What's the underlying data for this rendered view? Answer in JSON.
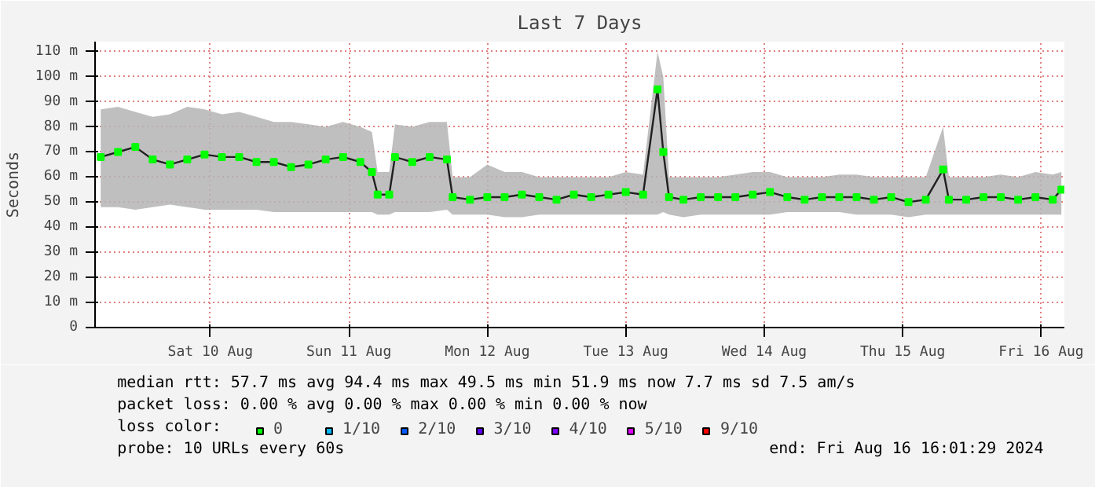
{
  "chart_data": {
    "type": "line",
    "title": "Last 7 Days",
    "ylabel": "Seconds",
    "legend_title": "loss color:",
    "legend": "bottom",
    "grid": true,
    "marker": "square",
    "line_style": "solid",
    "xlim": [
      "2024-08-09T16:01",
      "2024-08-16T16:01"
    ],
    "xticks": [
      {
        "value": "2024-08-10T12:00",
        "label": "Sat 10 Aug"
      },
      {
        "value": "2024-08-11T12:00",
        "label": "Sun 11 Aug"
      },
      {
        "value": "2024-08-12T12:00",
        "label": "Mon 12 Aug"
      },
      {
        "value": "2024-08-13T12:00",
        "label": "Tue 13 Aug"
      },
      {
        "value": "2024-08-14T12:00",
        "label": "Wed 14 Aug"
      },
      {
        "value": "2024-08-15T12:00",
        "label": "Thu 15 Aug"
      },
      {
        "value": "2024-08-16T12:00",
        "label": "Fri 16 Aug"
      }
    ],
    "ylim": [
      0,
      114
    ],
    "yticks": [
      0,
      {
        "value": 10,
        "label": "10 m"
      },
      {
        "value": 20,
        "label": "20 m"
      },
      {
        "value": 30,
        "label": "30 m"
      },
      {
        "value": 40,
        "label": "40 m"
      },
      {
        "value": 50,
        "label": "50 m"
      },
      {
        "value": 60,
        "label": "60 m"
      },
      {
        "value": 70,
        "label": "70 m"
      },
      {
        "value": 80,
        "label": "80 m"
      },
      {
        "value": 90,
        "label": "90 m"
      },
      {
        "value": 100,
        "label": "100 m"
      },
      {
        "value": 110,
        "label": "110 m"
      }
    ],
    "x": [
      "2024-08-09T17:00",
      "2024-08-09T20:00",
      "2024-08-09T23:00",
      "2024-08-10T02:00",
      "2024-08-10T05:00",
      "2024-08-10T08:00",
      "2024-08-10T11:00",
      "2024-08-10T14:00",
      "2024-08-10T17:00",
      "2024-08-10T20:00",
      "2024-08-10T23:00",
      "2024-08-11T02:00",
      "2024-08-11T05:00",
      "2024-08-11T08:00",
      "2024-08-11T11:00",
      "2024-08-11T14:00",
      "2024-08-11T16:00",
      "2024-08-11T17:00",
      "2024-08-11T19:00",
      "2024-08-11T20:00",
      "2024-08-11T23:00",
      "2024-08-12T02:00",
      "2024-08-12T05:00",
      "2024-08-12T06:00",
      "2024-08-12T09:00",
      "2024-08-12T12:00",
      "2024-08-12T15:00",
      "2024-08-12T18:00",
      "2024-08-12T21:00",
      "2024-08-13T00:00",
      "2024-08-13T03:00",
      "2024-08-13T06:00",
      "2024-08-13T09:00",
      "2024-08-13T12:00",
      "2024-08-13T15:00",
      "2024-08-13T17:30",
      "2024-08-13T18:30",
      "2024-08-13T19:30",
      "2024-08-13T22:00",
      "2024-08-14T01:00",
      "2024-08-14T04:00",
      "2024-08-14T07:00",
      "2024-08-14T10:00",
      "2024-08-14T13:00",
      "2024-08-14T16:00",
      "2024-08-14T19:00",
      "2024-08-14T22:00",
      "2024-08-15T01:00",
      "2024-08-15T04:00",
      "2024-08-15T07:00",
      "2024-08-15T10:00",
      "2024-08-15T13:00",
      "2024-08-15T16:00",
      "2024-08-15T19:00",
      "2024-08-15T20:00",
      "2024-08-15T23:00",
      "2024-08-16T02:00",
      "2024-08-16T05:00",
      "2024-08-16T08:00",
      "2024-08-16T11:00",
      "2024-08-16T14:00",
      "2024-08-16T15:30"
    ],
    "series": [
      {
        "name": "0",
        "color": "#00ff00",
        "values": [
          68,
          70,
          72,
          67,
          65,
          67,
          69,
          68,
          68,
          66,
          66,
          64,
          65,
          67,
          68,
          66,
          62,
          53,
          53,
          68,
          66,
          68,
          67,
          52,
          51,
          52,
          52,
          53,
          52,
          51,
          53,
          52,
          53,
          54,
          53,
          95,
          70,
          52,
          51,
          52,
          52,
          52,
          53,
          54,
          52,
          51,
          52,
          52,
          52,
          51,
          52,
          50,
          51,
          63,
          51,
          51,
          52,
          52,
          51,
          52,
          51,
          55
        ],
        "lower": [
          48,
          48,
          47,
          48,
          49,
          48,
          47,
          47,
          47,
          47,
          46,
          46,
          46,
          46,
          46,
          46,
          46,
          45,
          45,
          46,
          46,
          46,
          47,
          45,
          45,
          45,
          44,
          44,
          45,
          45,
          45,
          45,
          45,
          45,
          45,
          45,
          46,
          45,
          44,
          45,
          45,
          45,
          45,
          45,
          46,
          46,
          46,
          46,
          45,
          45,
          45,
          44,
          45,
          45,
          45,
          45,
          45,
          45,
          45,
          45,
          45,
          45
        ],
        "upper": [
          87,
          88,
          86,
          84,
          85,
          88,
          87,
          85,
          86,
          84,
          82,
          82,
          81,
          80,
          82,
          80,
          78,
          62,
          62,
          81,
          80,
          82,
          82,
          60,
          60,
          65,
          62,
          62,
          60,
          60,
          60,
          60,
          60,
          62,
          61,
          110,
          100,
          60,
          60,
          60,
          60,
          61,
          62,
          62,
          60,
          60,
          60,
          61,
          61,
          60,
          60,
          60,
          60,
          80,
          60,
          60,
          60,
          61,
          60,
          62,
          61,
          62
        ]
      },
      {
        "name": "1/10",
        "color": "#00b8ff",
        "values": [
          null,
          null,
          null,
          null,
          null,
          null,
          null,
          null,
          null,
          null,
          null,
          null,
          null,
          null,
          null,
          null,
          null,
          null,
          null,
          null,
          null,
          null,
          null,
          null,
          null,
          null,
          null,
          null,
          null,
          null,
          null,
          null,
          null,
          null,
          null,
          null,
          null,
          null,
          null,
          null,
          null,
          null,
          null,
          null,
          null,
          null,
          null,
          null,
          null,
          null,
          null,
          null,
          null,
          null,
          null,
          null,
          null,
          null,
          null,
          null,
          null,
          null
        ]
      },
      {
        "name": "2/10",
        "color": "#0059ff",
        "values": [
          null,
          null,
          null,
          null,
          null,
          null,
          null,
          null,
          null,
          null,
          null,
          null,
          null,
          null,
          null,
          null,
          null,
          null,
          null,
          null,
          null,
          null,
          null,
          null,
          null,
          null,
          null,
          null,
          null,
          null,
          null,
          null,
          null,
          null,
          null,
          null,
          null,
          null,
          null,
          null,
          null,
          null,
          null,
          null,
          null,
          null,
          null,
          null,
          null,
          null,
          null,
          null,
          null,
          null,
          null,
          null,
          null,
          null,
          null,
          null,
          null,
          null
        ]
      },
      {
        "name": "3/10",
        "color": "#5e00ff",
        "values": [
          null,
          null,
          null,
          null,
          null,
          null,
          null,
          null,
          null,
          null,
          null,
          null,
          null,
          null,
          null,
          null,
          null,
          null,
          null,
          null,
          null,
          null,
          null,
          null,
          null,
          null,
          null,
          null,
          null,
          null,
          null,
          null,
          null,
          null,
          null,
          null,
          null,
          null,
          null,
          null,
          null,
          null,
          null,
          null,
          null,
          null,
          null,
          null,
          null,
          null,
          null,
          null,
          null,
          null,
          null,
          null,
          null,
          null,
          null,
          null,
          null,
          null
        ]
      },
      {
        "name": "4/10",
        "color": "#7e00ff",
        "values": [
          null,
          null,
          null,
          null,
          null,
          null,
          null,
          null,
          null,
          null,
          null,
          null,
          null,
          null,
          null,
          null,
          null,
          null,
          null,
          null,
          null,
          null,
          null,
          null,
          null,
          null,
          null,
          null,
          null,
          null,
          null,
          null,
          null,
          null,
          null,
          null,
          null,
          null,
          null,
          null,
          null,
          null,
          null,
          null,
          null,
          null,
          null,
          null,
          null,
          null,
          null,
          null,
          null,
          null,
          null,
          null,
          null,
          null,
          null,
          null,
          null,
          null
        ]
      },
      {
        "name": "5/10",
        "color": "#dd00ff",
        "values": [
          null,
          null,
          null,
          null,
          null,
          null,
          null,
          null,
          null,
          null,
          null,
          null,
          null,
          null,
          null,
          null,
          null,
          null,
          null,
          null,
          null,
          null,
          null,
          null,
          null,
          null,
          null,
          null,
          null,
          null,
          null,
          null,
          null,
          null,
          null,
          null,
          null,
          null,
          null,
          null,
          null,
          null,
          null,
          null,
          null,
          null,
          null,
          null,
          null,
          null,
          null,
          null,
          null,
          null,
          null,
          null,
          null,
          null,
          null,
          null,
          null,
          null
        ]
      },
      {
        "name": "9/10",
        "color": "#ff0000",
        "values": [
          null,
          null,
          null,
          null,
          null,
          null,
          null,
          null,
          null,
          null,
          null,
          null,
          null,
          null,
          null,
          null,
          null,
          null,
          null,
          null,
          null,
          null,
          null,
          null,
          null,
          null,
          null,
          null,
          null,
          null,
          null,
          null,
          null,
          null,
          null,
          null,
          null,
          null,
          null,
          null,
          null,
          null,
          null,
          null,
          null,
          null,
          null,
          null,
          null,
          null,
          null,
          null,
          null,
          null,
          null,
          null,
          null,
          null,
          null,
          null,
          null,
          null
        ]
      }
    ],
    "annotations": [
      "median rtt:  57.7 ms avg  94.4 ms max  49.5 ms min  51.9 ms now  7.7 ms sd  7.5   am/s",
      "packet loss: 0.00 % avg  0.00 % max  0.00 % min  0.00 % now",
      "probe:       10 URLs every 60s",
      "end: Fri Aug 16 16:01:29 2024"
    ]
  }
}
